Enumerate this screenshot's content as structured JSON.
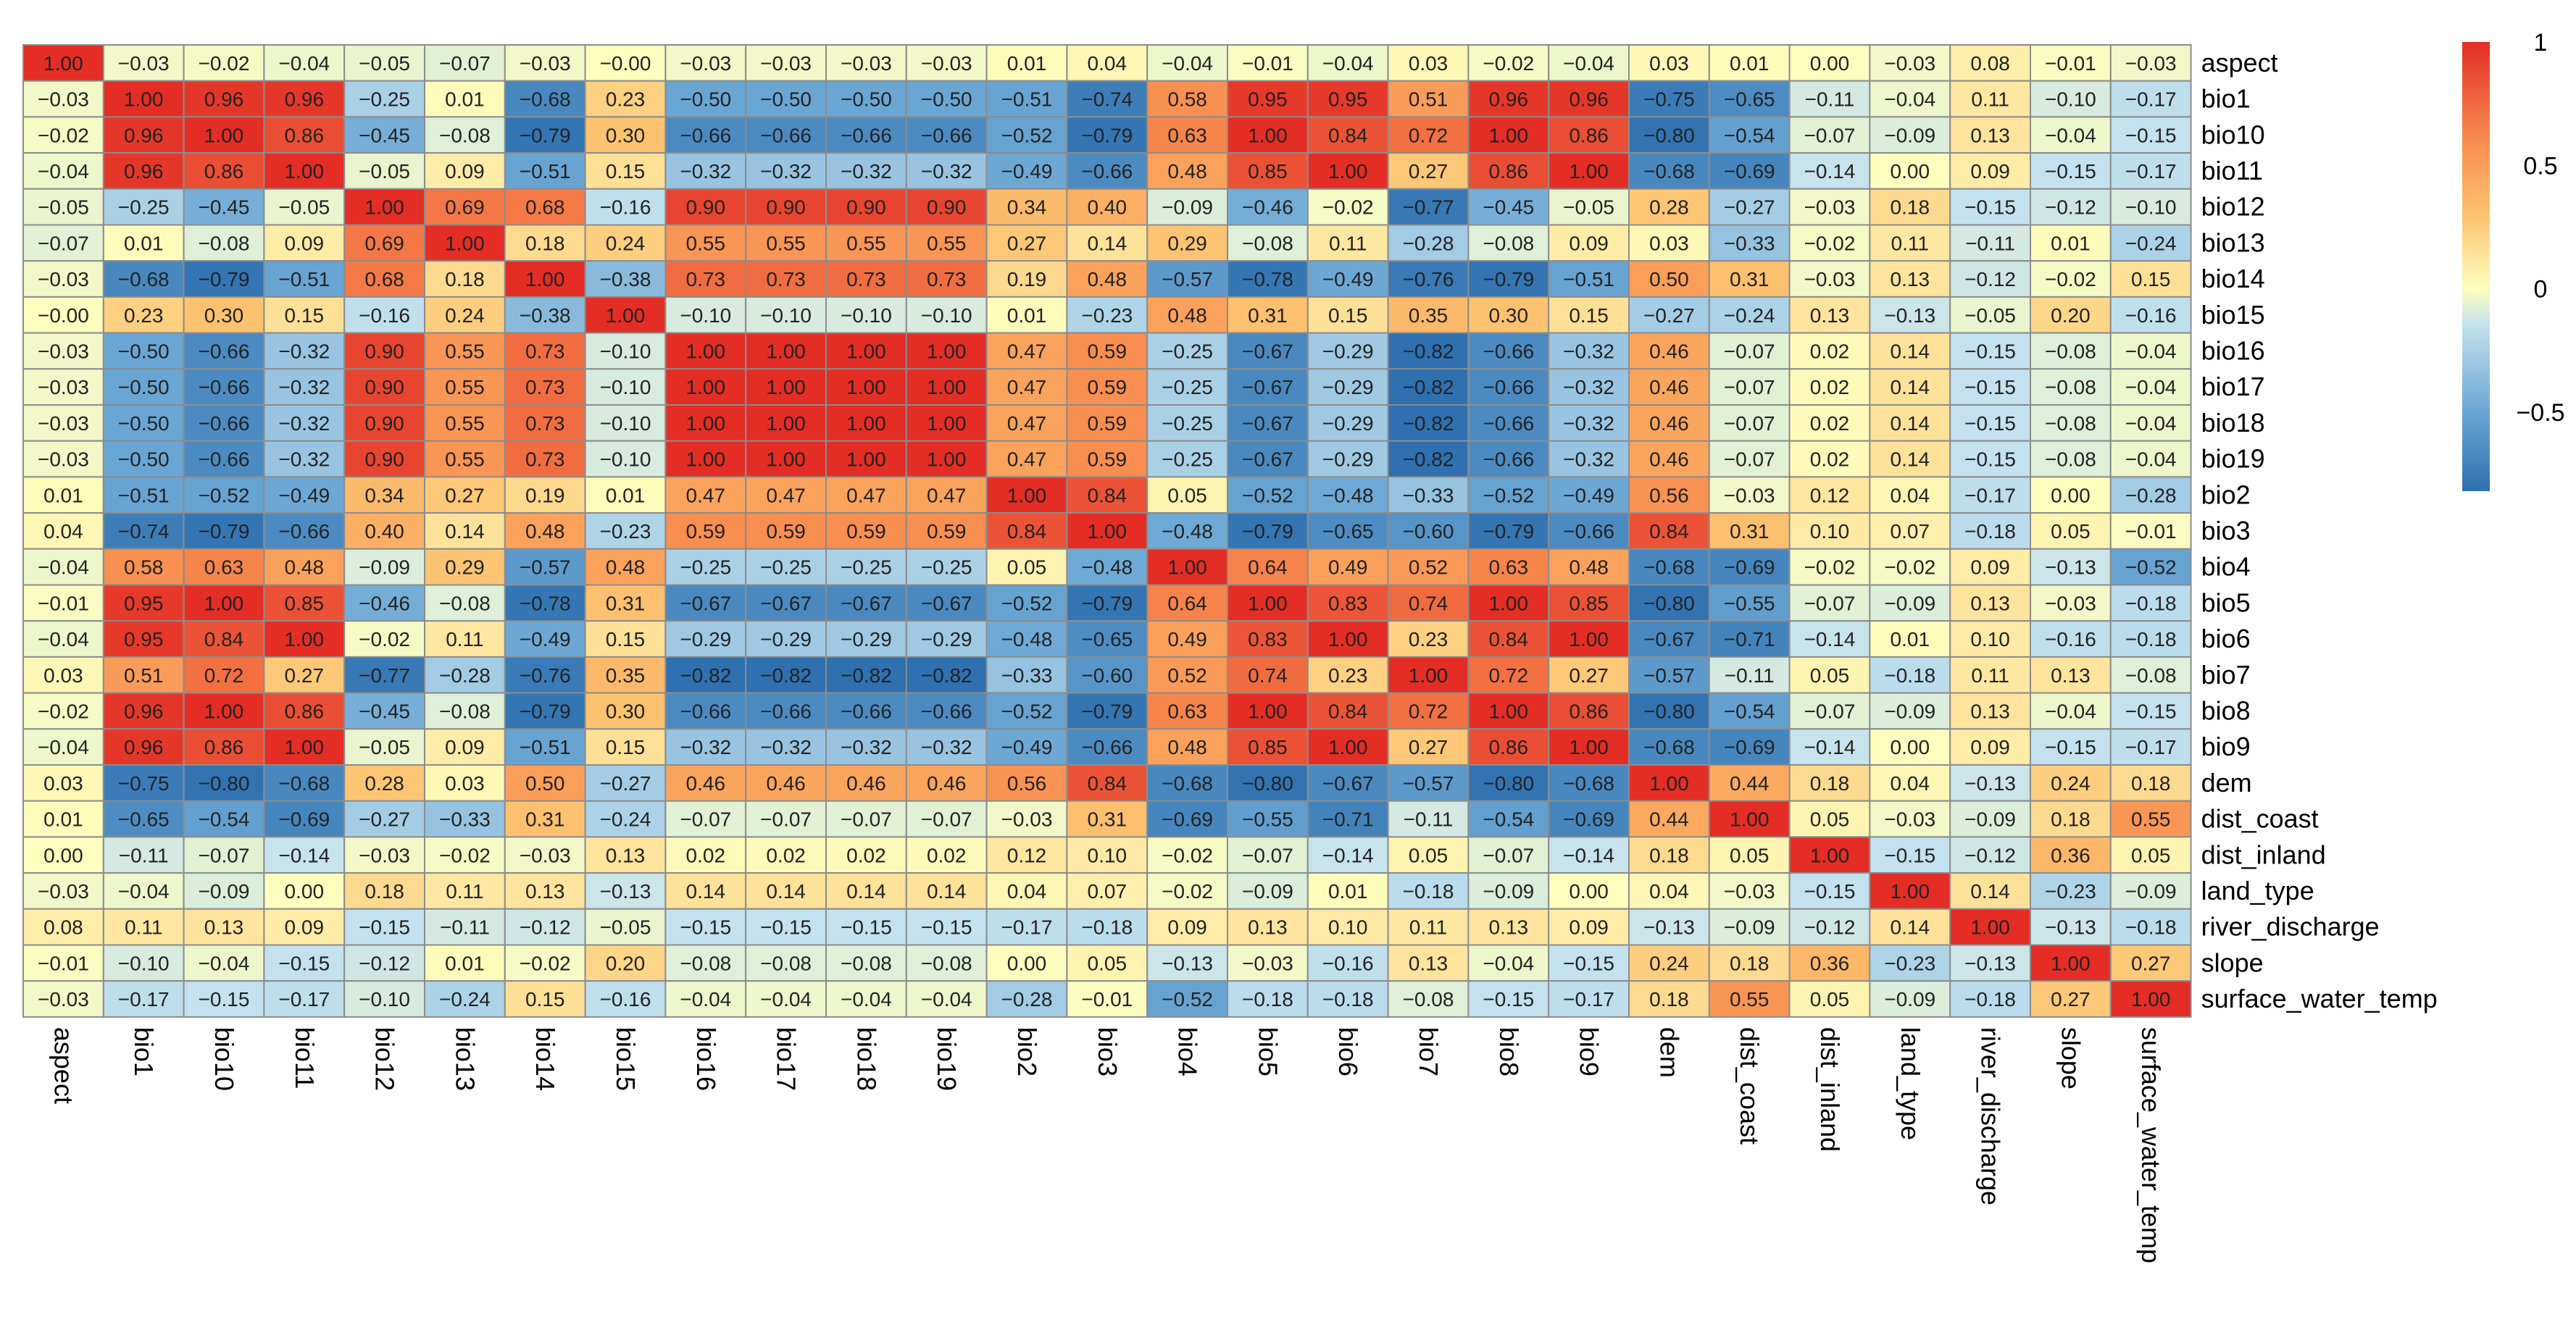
{
  "chart_data": {
    "type": "heatmap",
    "title": "",
    "variables": [
      "aspect",
      "bio1",
      "bio10",
      "bio11",
      "bio12",
      "bio13",
      "bio14",
      "bio15",
      "bio16",
      "bio17",
      "bio18",
      "bio19",
      "bio2",
      "bio3",
      "bio4",
      "bio5",
      "bio6",
      "bio7",
      "bio8",
      "bio9",
      "dem",
      "dist_coast",
      "dist_inland",
      "land_type",
      "river_discharge",
      "slope",
      "surface_water_temp"
    ],
    "matrix": [
      [
        1.0,
        -0.03,
        -0.02,
        -0.04,
        -0.05,
        -0.07,
        -0.03,
        -0.0,
        -0.03,
        -0.03,
        -0.03,
        -0.03,
        0.01,
        0.04,
        -0.04,
        -0.01,
        -0.04,
        0.03,
        -0.02,
        -0.04,
        0.03,
        0.01,
        0.0,
        -0.03,
        0.08,
        -0.01,
        -0.03
      ],
      [
        -0.03,
        1.0,
        0.96,
        0.96,
        -0.25,
        0.01,
        -0.68,
        0.23,
        -0.5,
        -0.5,
        -0.5,
        -0.5,
        -0.51,
        -0.74,
        0.58,
        0.95,
        0.95,
        0.51,
        0.96,
        0.96,
        -0.75,
        -0.65,
        -0.11,
        -0.04,
        0.11,
        -0.1,
        -0.17
      ],
      [
        -0.02,
        0.96,
        1.0,
        0.86,
        -0.45,
        -0.08,
        -0.79,
        0.3,
        -0.66,
        -0.66,
        -0.66,
        -0.66,
        -0.52,
        -0.79,
        0.63,
        1.0,
        0.84,
        0.72,
        1.0,
        0.86,
        -0.8,
        -0.54,
        -0.07,
        -0.09,
        0.13,
        -0.04,
        -0.15
      ],
      [
        -0.04,
        0.96,
        0.86,
        1.0,
        -0.05,
        0.09,
        -0.51,
        0.15,
        -0.32,
        -0.32,
        -0.32,
        -0.32,
        -0.49,
        -0.66,
        0.48,
        0.85,
        1.0,
        0.27,
        0.86,
        1.0,
        -0.68,
        -0.69,
        -0.14,
        0.0,
        0.09,
        -0.15,
        -0.17
      ],
      [
        -0.05,
        -0.25,
        -0.45,
        -0.05,
        1.0,
        0.69,
        0.68,
        -0.16,
        0.9,
        0.9,
        0.9,
        0.9,
        0.34,
        0.4,
        -0.09,
        -0.46,
        -0.02,
        -0.77,
        -0.45,
        -0.05,
        0.28,
        -0.27,
        -0.03,
        0.18,
        -0.15,
        -0.12,
        -0.1
      ],
      [
        -0.07,
        0.01,
        -0.08,
        0.09,
        0.69,
        1.0,
        0.18,
        0.24,
        0.55,
        0.55,
        0.55,
        0.55,
        0.27,
        0.14,
        0.29,
        -0.08,
        0.11,
        -0.28,
        -0.08,
        0.09,
        0.03,
        -0.33,
        -0.02,
        0.11,
        -0.11,
        0.01,
        -0.24
      ],
      [
        -0.03,
        -0.68,
        -0.79,
        -0.51,
        0.68,
        0.18,
        1.0,
        -0.38,
        0.73,
        0.73,
        0.73,
        0.73,
        0.19,
        0.48,
        -0.57,
        -0.78,
        -0.49,
        -0.76,
        -0.79,
        -0.51,
        0.5,
        0.31,
        -0.03,
        0.13,
        -0.12,
        -0.02,
        0.15
      ],
      [
        -0.0,
        0.23,
        0.3,
        0.15,
        -0.16,
        0.24,
        -0.38,
        1.0,
        -0.1,
        -0.1,
        -0.1,
        -0.1,
        0.01,
        -0.23,
        0.48,
        0.31,
        0.15,
        0.35,
        0.3,
        0.15,
        -0.27,
        -0.24,
        0.13,
        -0.13,
        -0.05,
        0.2,
        -0.16
      ],
      [
        -0.03,
        -0.5,
        -0.66,
        -0.32,
        0.9,
        0.55,
        0.73,
        -0.1,
        1.0,
        1.0,
        1.0,
        1.0,
        0.47,
        0.59,
        -0.25,
        -0.67,
        -0.29,
        -0.82,
        -0.66,
        -0.32,
        0.46,
        -0.07,
        0.02,
        0.14,
        -0.15,
        -0.08,
        -0.04
      ],
      [
        -0.03,
        -0.5,
        -0.66,
        -0.32,
        0.9,
        0.55,
        0.73,
        -0.1,
        1.0,
        1.0,
        1.0,
        1.0,
        0.47,
        0.59,
        -0.25,
        -0.67,
        -0.29,
        -0.82,
        -0.66,
        -0.32,
        0.46,
        -0.07,
        0.02,
        0.14,
        -0.15,
        -0.08,
        -0.04
      ],
      [
        -0.03,
        -0.5,
        -0.66,
        -0.32,
        0.9,
        0.55,
        0.73,
        -0.1,
        1.0,
        1.0,
        1.0,
        1.0,
        0.47,
        0.59,
        -0.25,
        -0.67,
        -0.29,
        -0.82,
        -0.66,
        -0.32,
        0.46,
        -0.07,
        0.02,
        0.14,
        -0.15,
        -0.08,
        -0.04
      ],
      [
        -0.03,
        -0.5,
        -0.66,
        -0.32,
        0.9,
        0.55,
        0.73,
        -0.1,
        1.0,
        1.0,
        1.0,
        1.0,
        0.47,
        0.59,
        -0.25,
        -0.67,
        -0.29,
        -0.82,
        -0.66,
        -0.32,
        0.46,
        -0.07,
        0.02,
        0.14,
        -0.15,
        -0.08,
        -0.04
      ],
      [
        0.01,
        -0.51,
        -0.52,
        -0.49,
        0.34,
        0.27,
        0.19,
        0.01,
        0.47,
        0.47,
        0.47,
        0.47,
        1.0,
        0.84,
        0.05,
        -0.52,
        -0.48,
        -0.33,
        -0.52,
        -0.49,
        0.56,
        -0.03,
        0.12,
        0.04,
        -0.17,
        0.0,
        -0.28
      ],
      [
        0.04,
        -0.74,
        -0.79,
        -0.66,
        0.4,
        0.14,
        0.48,
        -0.23,
        0.59,
        0.59,
        0.59,
        0.59,
        0.84,
        1.0,
        -0.48,
        -0.79,
        -0.65,
        -0.6,
        -0.79,
        -0.66,
        0.84,
        0.31,
        0.1,
        0.07,
        -0.18,
        0.05,
        -0.01
      ],
      [
        -0.04,
        0.58,
        0.63,
        0.48,
        -0.09,
        0.29,
        -0.57,
        0.48,
        -0.25,
        -0.25,
        -0.25,
        -0.25,
        0.05,
        -0.48,
        1.0,
        0.64,
        0.49,
        0.52,
        0.63,
        0.48,
        -0.68,
        -0.69,
        -0.02,
        -0.02,
        0.09,
        -0.13,
        -0.52
      ],
      [
        -0.01,
        0.95,
        1.0,
        0.85,
        -0.46,
        -0.08,
        -0.78,
        0.31,
        -0.67,
        -0.67,
        -0.67,
        -0.67,
        -0.52,
        -0.79,
        0.64,
        1.0,
        0.83,
        0.74,
        1.0,
        0.85,
        -0.8,
        -0.55,
        -0.07,
        -0.09,
        0.13,
        -0.03,
        -0.18
      ],
      [
        -0.04,
        0.95,
        0.84,
        1.0,
        -0.02,
        0.11,
        -0.49,
        0.15,
        -0.29,
        -0.29,
        -0.29,
        -0.29,
        -0.48,
        -0.65,
        0.49,
        0.83,
        1.0,
        0.23,
        0.84,
        1.0,
        -0.67,
        -0.71,
        -0.14,
        0.01,
        0.1,
        -0.16,
        -0.18
      ],
      [
        0.03,
        0.51,
        0.72,
        0.27,
        -0.77,
        -0.28,
        -0.76,
        0.35,
        -0.82,
        -0.82,
        -0.82,
        -0.82,
        -0.33,
        -0.6,
        0.52,
        0.74,
        0.23,
        1.0,
        0.72,
        0.27,
        -0.57,
        -0.11,
        0.05,
        -0.18,
        0.11,
        0.13,
        -0.08
      ],
      [
        -0.02,
        0.96,
        1.0,
        0.86,
        -0.45,
        -0.08,
        -0.79,
        0.3,
        -0.66,
        -0.66,
        -0.66,
        -0.66,
        -0.52,
        -0.79,
        0.63,
        1.0,
        0.84,
        0.72,
        1.0,
        0.86,
        -0.8,
        -0.54,
        -0.07,
        -0.09,
        0.13,
        -0.04,
        -0.15
      ],
      [
        -0.04,
        0.96,
        0.86,
        1.0,
        -0.05,
        0.09,
        -0.51,
        0.15,
        -0.32,
        -0.32,
        -0.32,
        -0.32,
        -0.49,
        -0.66,
        0.48,
        0.85,
        1.0,
        0.27,
        0.86,
        1.0,
        -0.68,
        -0.69,
        -0.14,
        0.0,
        0.09,
        -0.15,
        -0.17
      ],
      [
        0.03,
        -0.75,
        -0.8,
        -0.68,
        0.28,
        0.03,
        0.5,
        -0.27,
        0.46,
        0.46,
        0.46,
        0.46,
        0.56,
        0.84,
        -0.68,
        -0.8,
        -0.67,
        -0.57,
        -0.8,
        -0.68,
        1.0,
        0.44,
        0.18,
        0.04,
        -0.13,
        0.24,
        0.18
      ],
      [
        0.01,
        -0.65,
        -0.54,
        -0.69,
        -0.27,
        -0.33,
        0.31,
        -0.24,
        -0.07,
        -0.07,
        -0.07,
        -0.07,
        -0.03,
        0.31,
        -0.69,
        -0.55,
        -0.71,
        -0.11,
        -0.54,
        -0.69,
        0.44,
        1.0,
        0.05,
        -0.03,
        -0.09,
        0.18,
        0.55
      ],
      [
        0.0,
        -0.11,
        -0.07,
        -0.14,
        -0.03,
        -0.02,
        -0.03,
        0.13,
        0.02,
        0.02,
        0.02,
        0.02,
        0.12,
        0.1,
        -0.02,
        -0.07,
        -0.14,
        0.05,
        -0.07,
        -0.14,
        0.18,
        0.05,
        1.0,
        -0.15,
        -0.12,
        0.36,
        0.05
      ],
      [
        -0.03,
        -0.04,
        -0.09,
        0.0,
        0.18,
        0.11,
        0.13,
        -0.13,
        0.14,
        0.14,
        0.14,
        0.14,
        0.04,
        0.07,
        -0.02,
        -0.09,
        0.01,
        -0.18,
        -0.09,
        0.0,
        0.04,
        -0.03,
        -0.15,
        1.0,
        0.14,
        -0.23,
        -0.09
      ],
      [
        0.08,
        0.11,
        0.13,
        0.09,
        -0.15,
        -0.11,
        -0.12,
        -0.05,
        -0.15,
        -0.15,
        -0.15,
        -0.15,
        -0.17,
        -0.18,
        0.09,
        0.13,
        0.1,
        0.11,
        0.13,
        0.09,
        -0.13,
        -0.09,
        -0.12,
        0.14,
        1.0,
        -0.13,
        -0.18
      ],
      [
        -0.01,
        -0.1,
        -0.04,
        -0.15,
        -0.12,
        0.01,
        -0.02,
        0.2,
        -0.08,
        -0.08,
        -0.08,
        -0.08,
        0.0,
        0.05,
        -0.13,
        -0.03,
        -0.16,
        0.13,
        -0.04,
        -0.15,
        0.24,
        0.18,
        0.36,
        -0.23,
        -0.13,
        1.0,
        0.27
      ],
      [
        -0.03,
        -0.17,
        -0.15,
        -0.17,
        -0.1,
        -0.24,
        0.15,
        -0.16,
        -0.04,
        -0.04,
        -0.04,
        -0.04,
        -0.28,
        -0.01,
        -0.52,
        -0.18,
        -0.18,
        -0.08,
        -0.15,
        -0.17,
        0.18,
        0.55,
        0.05,
        -0.09,
        -0.18,
        0.27,
        1.0
      ]
    ],
    "color_scale": {
      "min": -0.82,
      "max": 1.0,
      "stops": [
        {
          "value": -0.82,
          "color": "#2e70b0"
        },
        {
          "value": -0.5,
          "color": "#6aa6d3"
        },
        {
          "value": -0.15,
          "color": "#c3e1ee"
        },
        {
          "value": 0.0,
          "color": "#fefebe"
        },
        {
          "value": 0.3,
          "color": "#fdc270"
        },
        {
          "value": 0.6,
          "color": "#f88c4f"
        },
        {
          "value": 1.0,
          "color": "#e32d25"
        }
      ]
    },
    "legend": {
      "ticks": [
        "1",
        "0.5",
        "0",
        "-0.5"
      ],
      "tick_values": [
        1.0,
        0.5,
        0.0,
        -0.5
      ]
    },
    "grid_color": "#8c8c8c"
  }
}
